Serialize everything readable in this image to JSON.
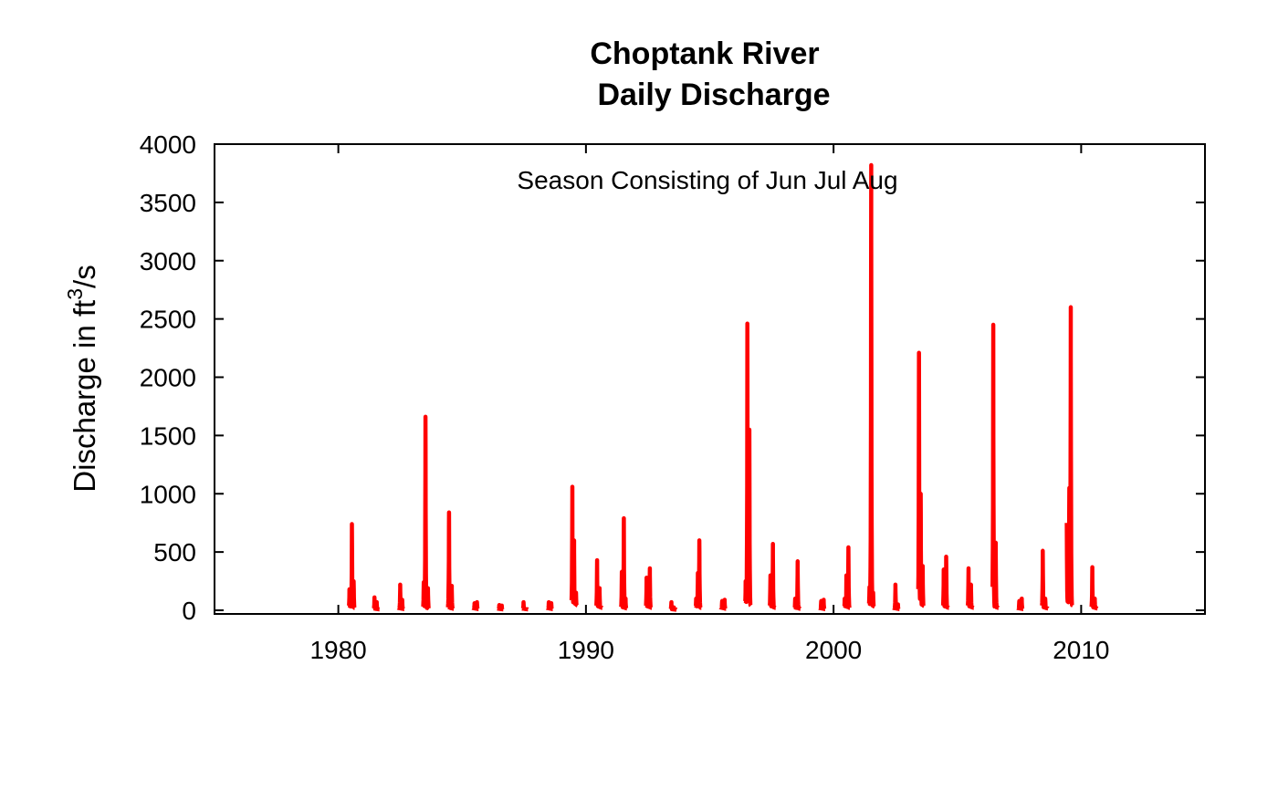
{
  "chart_data": {
    "type": "line",
    "title": "Choptank River",
    "subtitle": "Daily Discharge",
    "xlabel": "",
    "ylabel_prefix": "Discharge in ft",
    "ylabel_superscript": "3",
    "ylabel_suffix": "/s",
    "annotation": "Season Consisting of Jun Jul Aug",
    "xlim": [
      1975.0,
      2015.0
    ],
    "ylim": [
      0,
      4000
    ],
    "x_ticks": [
      1980,
      1990,
      2000,
      2010
    ],
    "y_ticks": [
      0,
      500,
      1000,
      1500,
      2000,
      2500,
      3000,
      3500,
      4000
    ],
    "grid": false,
    "legend": "none",
    "color": "#FF0000",
    "series": [
      {
        "season_bursts": [
          {
            "x_start": 1980.42,
            "x_end": 1980.66,
            "peaks": [
              [
                1980.45,
                180
              ],
              [
                1980.55,
                740
              ],
              [
                1980.62,
                250
              ]
            ],
            "base": 40
          },
          {
            "x_start": 1981.42,
            "x_end": 1981.66,
            "peaks": [
              [
                1981.46,
                110
              ],
              [
                1981.55,
                70
              ]
            ],
            "base": 15
          },
          {
            "x_start": 1982.42,
            "x_end": 1982.66,
            "peaks": [
              [
                1982.5,
                220
              ],
              [
                1982.58,
                90
              ]
            ],
            "base": 20
          },
          {
            "x_start": 1983.42,
            "x_end": 1983.66,
            "peaks": [
              [
                1983.45,
                240
              ],
              [
                1983.52,
                1660
              ],
              [
                1983.62,
                190
              ]
            ],
            "base": 30
          },
          {
            "x_start": 1984.42,
            "x_end": 1984.66,
            "peaks": [
              [
                1984.47,
                840
              ],
              [
                1984.58,
                210
              ]
            ],
            "base": 25
          },
          {
            "x_start": 1985.42,
            "x_end": 1985.66,
            "peaks": [
              [
                1985.5,
                60
              ],
              [
                1985.6,
                70
              ]
            ],
            "base": 20
          },
          {
            "x_start": 1986.42,
            "x_end": 1986.66,
            "peaks": [
              [
                1986.5,
                45
              ],
              [
                1986.6,
                40
              ]
            ],
            "base": 15
          },
          {
            "x_start": 1987.42,
            "x_end": 1987.66,
            "peaks": [
              [
                1987.48,
                70
              ]
            ],
            "base": 15
          },
          {
            "x_start": 1988.42,
            "x_end": 1988.66,
            "peaks": [
              [
                1988.5,
                70
              ],
              [
                1988.6,
                60
              ]
            ],
            "base": 20
          },
          {
            "x_start": 1989.42,
            "x_end": 1989.66,
            "peaks": [
              [
                1989.45,
                1060
              ],
              [
                1989.52,
                600
              ],
              [
                1989.6,
                150
              ]
            ],
            "base": 80
          },
          {
            "x_start": 1990.42,
            "x_end": 1990.66,
            "peaks": [
              [
                1990.45,
                430
              ],
              [
                1990.55,
                190
              ]
            ],
            "base": 40
          },
          {
            "x_start": 1991.42,
            "x_end": 1991.66,
            "peaks": [
              [
                1991.45,
                330
              ],
              [
                1991.53,
                790
              ],
              [
                1991.6,
                100
              ]
            ],
            "base": 30
          },
          {
            "x_start": 1992.42,
            "x_end": 1992.66,
            "peaks": [
              [
                1992.45,
                280
              ],
              [
                1992.58,
                360
              ]
            ],
            "base": 40
          },
          {
            "x_start": 1993.42,
            "x_end": 1993.66,
            "peaks": [
              [
                1993.45,
                70
              ],
              [
                1993.55,
                25
              ]
            ],
            "base": 10
          },
          {
            "x_start": 1994.42,
            "x_end": 1994.66,
            "peaks": [
              [
                1994.45,
                100
              ],
              [
                1994.52,
                320
              ],
              [
                1994.58,
                600
              ]
            ],
            "base": 40
          },
          {
            "x_start": 1995.42,
            "x_end": 1995.66,
            "peaks": [
              [
                1995.5,
                80
              ],
              [
                1995.6,
                90
              ]
            ],
            "base": 25
          },
          {
            "x_start": 1996.42,
            "x_end": 1996.66,
            "peaks": [
              [
                1996.45,
                250
              ],
              [
                1996.52,
                2460
              ],
              [
                1996.6,
                1550
              ]
            ],
            "base": 80
          },
          {
            "x_start": 1997.42,
            "x_end": 1997.66,
            "peaks": [
              [
                1997.45,
                300
              ],
              [
                1997.55,
                570
              ]
            ],
            "base": 40
          },
          {
            "x_start": 1998.42,
            "x_end": 1998.66,
            "peaks": [
              [
                1998.45,
                100
              ],
              [
                1998.55,
                420
              ]
            ],
            "base": 25
          },
          {
            "x_start": 1999.42,
            "x_end": 1999.66,
            "peaks": [
              [
                1999.5,
                80
              ],
              [
                1999.6,
                90
              ]
            ],
            "base": 20
          },
          {
            "x_start": 2000.42,
            "x_end": 2000.66,
            "peaks": [
              [
                2000.45,
                100
              ],
              [
                2000.52,
                300
              ],
              [
                2000.6,
                540
              ]
            ],
            "base": 40
          },
          {
            "x_start": 2001.42,
            "x_end": 2001.66,
            "peaks": [
              [
                2001.45,
                200
              ],
              [
                2001.52,
                3820
              ],
              [
                2001.6,
                150
              ]
            ],
            "base": 60
          },
          {
            "x_start": 2002.42,
            "x_end": 2002.66,
            "peaks": [
              [
                2002.5,
                220
              ],
              [
                2002.6,
                50
              ]
            ],
            "base": 20
          },
          {
            "x_start": 2003.42,
            "x_end": 2003.66,
            "peaks": [
              [
                2003.45,
                2210
              ],
              [
                2003.52,
                1000
              ],
              [
                2003.6,
                380
              ]
            ],
            "base": 70
          },
          {
            "x_start": 2004.42,
            "x_end": 2004.66,
            "peaks": [
              [
                2004.45,
                350
              ],
              [
                2004.55,
                460
              ]
            ],
            "base": 40
          },
          {
            "x_start": 2005.42,
            "x_end": 2005.66,
            "peaks": [
              [
                2005.45,
                360
              ],
              [
                2005.55,
                220
              ]
            ],
            "base": 40
          },
          {
            "x_start": 2006.42,
            "x_end": 2006.66,
            "peaks": [
              [
                2006.45,
                2450
              ],
              [
                2006.55,
                580
              ]
            ],
            "base": 40
          },
          {
            "x_start": 2007.42,
            "x_end": 2007.66,
            "peaks": [
              [
                2007.5,
                80
              ],
              [
                2007.6,
                100
              ]
            ],
            "base": 20
          },
          {
            "x_start": 2008.42,
            "x_end": 2008.66,
            "peaks": [
              [
                2008.45,
                510
              ],
              [
                2008.55,
                100
              ]
            ],
            "base": 30
          },
          {
            "x_start": 2009.42,
            "x_end": 2009.66,
            "peaks": [
              [
                2009.42,
                750
              ],
              [
                2009.52,
                1050
              ],
              [
                2009.58,
                2600
              ]
            ],
            "base": 80
          },
          {
            "x_start": 2010.42,
            "x_end": 2010.66,
            "peaks": [
              [
                2010.45,
                370
              ],
              [
                2010.55,
                100
              ]
            ],
            "base": 30
          }
        ]
      }
    ]
  }
}
